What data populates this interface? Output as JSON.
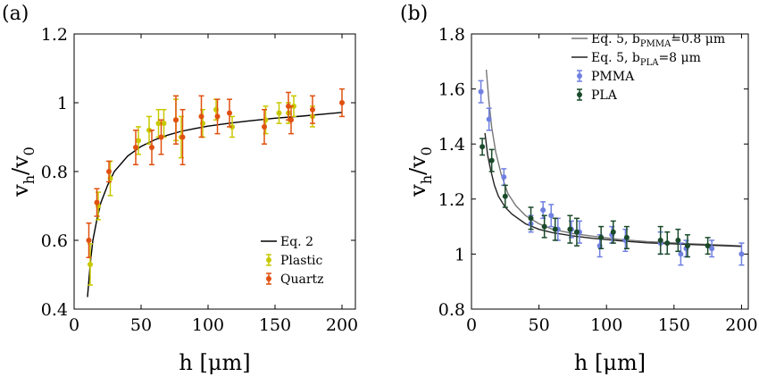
{
  "chart_data": [
    {
      "panel": "(a)",
      "type": "scatter",
      "xlabel": "h [μm]",
      "ylabel": "v_h/v_0",
      "xlim": [
        0,
        210
      ],
      "ylim": [
        0.4,
        1.2
      ],
      "xticks": [
        0,
        50,
        100,
        150,
        200
      ],
      "yticks": [
        0.4,
        0.6,
        0.8,
        1,
        1.2
      ],
      "legend_position": "bottom-right",
      "curves": [
        {
          "name": "Eq. 2",
          "color": "#000000",
          "x": [
            10,
            12,
            14,
            17,
            20,
            25,
            30,
            40,
            50,
            60,
            70,
            80,
            90,
            100,
            115,
            130,
            150,
            170,
            200
          ],
          "y": [
            0.435,
            0.53,
            0.6,
            0.66,
            0.71,
            0.76,
            0.8,
            0.845,
            0.873,
            0.892,
            0.906,
            0.917,
            0.925,
            0.932,
            0.94,
            0.947,
            0.955,
            0.961,
            0.972
          ]
        }
      ],
      "series": [
        {
          "name": "Plastic",
          "color": "#c8c800",
          "x": [
            12,
            18,
            27,
            48,
            56,
            63,
            67,
            76,
            80,
            96,
            106,
            118,
            143,
            153,
            160,
            164,
            178
          ],
          "y": [
            0.53,
            0.7,
            0.78,
            0.89,
            0.92,
            0.94,
            0.94,
            0.95,
            0.9,
            0.94,
            0.98,
            0.93,
            0.95,
            0.97,
            0.97,
            0.99,
            0.96
          ],
          "err": [
            0.06,
            0.04,
            0.05,
            0.04,
            0.04,
            0.04,
            0.04,
            0.06,
            0.06,
            0.04,
            0.03,
            0.03,
            0.04,
            0.03,
            0.03,
            0.03,
            0.03
          ]
        },
        {
          "name": "Quartz",
          "color": "#e05010",
          "x": [
            11,
            17,
            26,
            46,
            58,
            65,
            76,
            81,
            95,
            107,
            116,
            142,
            160,
            162,
            178,
            200
          ],
          "y": [
            0.6,
            0.71,
            0.8,
            0.87,
            0.87,
            0.9,
            0.95,
            0.9,
            0.96,
            0.96,
            0.97,
            0.93,
            0.99,
            0.95,
            0.98,
            1.0
          ],
          "err": [
            0.05,
            0.04,
            0.03,
            0.05,
            0.05,
            0.05,
            0.07,
            0.08,
            0.06,
            0.05,
            0.04,
            0.05,
            0.04,
            0.04,
            0.04,
            0.04
          ]
        }
      ]
    },
    {
      "panel": "(b)",
      "type": "scatter",
      "xlabel": "h [μm]",
      "ylabel": "v_h/v_0",
      "xlim": [
        0,
        205
      ],
      "ylim": [
        0.8,
        1.8
      ],
      "xticks": [
        0,
        50,
        100,
        150,
        200
      ],
      "yticks": [
        0.8,
        1,
        1.2,
        1.4,
        1.6,
        1.8
      ],
      "legend_position": "top-right",
      "curves": [
        {
          "name": "Eq. 5, b_PMMA=0.8 μm",
          "color": "#777777",
          "x": [
            11,
            13,
            15,
            18,
            22,
            27,
            33,
            40,
            50,
            60,
            75,
            90,
            110,
            130,
            160,
            200
          ],
          "y": [
            1.67,
            1.55,
            1.46,
            1.37,
            1.29,
            1.22,
            1.175,
            1.14,
            1.11,
            1.09,
            1.075,
            1.065,
            1.053,
            1.045,
            1.038,
            1.03
          ]
        },
        {
          "name": "Eq. 5, b_PLA=8 μm",
          "color": "#222222",
          "x": [
            10,
            12,
            14,
            17,
            20,
            25,
            30,
            40,
            50,
            60,
            75,
            90,
            110,
            130,
            160,
            200
          ],
          "y": [
            1.44,
            1.36,
            1.31,
            1.25,
            1.21,
            1.17,
            1.145,
            1.11,
            1.09,
            1.078,
            1.066,
            1.057,
            1.048,
            1.041,
            1.035,
            1.028
          ]
        }
      ],
      "series": [
        {
          "name": "PMMA",
          "color": "#7080e0",
          "x": [
            7,
            13,
            24,
            44,
            53,
            59,
            64,
            74,
            80,
            95,
            104,
            114,
            140,
            155,
            159,
            178,
            200
          ],
          "y": [
            1.59,
            1.49,
            1.28,
            1.11,
            1.16,
            1.14,
            1.09,
            1.09,
            1.08,
            1.03,
            1.07,
            1.05,
            1.04,
            1.0,
            1.02,
            1.02,
            1.0
          ],
          "err": [
            0.04,
            0.04,
            0.03,
            0.03,
            0.03,
            0.04,
            0.04,
            0.03,
            0.04,
            0.04,
            0.03,
            0.04,
            0.04,
            0.04,
            0.03,
            0.03,
            0.04
          ]
        },
        {
          "name": "PLA",
          "color": "#1a4a2a",
          "x": [
            8,
            15,
            25,
            44,
            54,
            62,
            73,
            78,
            96,
            105,
            115,
            140,
            145,
            153,
            160,
            175
          ],
          "y": [
            1.39,
            1.34,
            1.21,
            1.13,
            1.1,
            1.09,
            1.09,
            1.08,
            1.06,
            1.08,
            1.06,
            1.05,
            1.04,
            1.05,
            1.03,
            1.03
          ],
          "err": [
            0.03,
            0.04,
            0.04,
            0.04,
            0.04,
            0.04,
            0.05,
            0.05,
            0.04,
            0.04,
            0.04,
            0.05,
            0.04,
            0.04,
            0.04,
            0.03
          ]
        }
      ]
    }
  ]
}
